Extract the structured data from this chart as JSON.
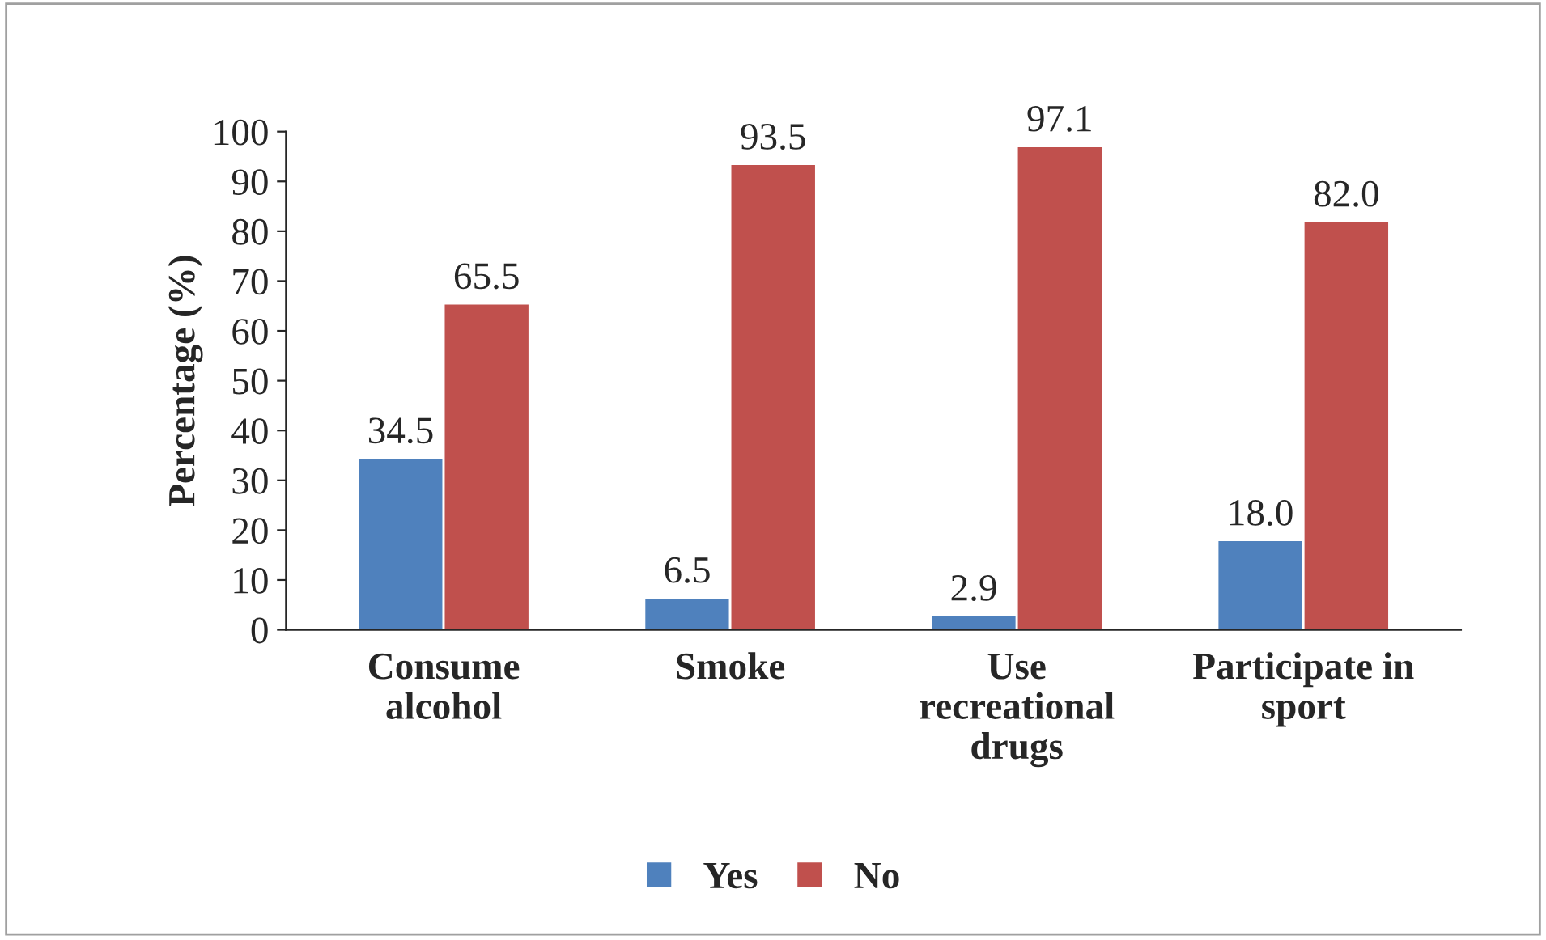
{
  "chart_data": {
    "type": "bar",
    "categories": [
      "Consume\nalcohol",
      "Smoke",
      "Use\nrecreational\ndrugs",
      "Participate in\nsport"
    ],
    "ylabel": "Percentage (%)",
    "series": [
      {
        "name": "Yes",
        "color": "#4f81bd",
        "values": [
          34.5,
          6.5,
          2.9,
          18.0
        ],
        "value_labels": [
          "34.5",
          "6.5",
          "2.9",
          "18.0"
        ]
      },
      {
        "name": "No",
        "color": "#c0504d",
        "values": [
          65.5,
          93.5,
          97.1,
          82.0
        ],
        "value_labels": [
          "65.5",
          "93.5",
          "97.1",
          "82.0"
        ]
      }
    ],
    "ylim": [
      0,
      100
    ],
    "yticks": [
      0,
      10,
      20,
      30,
      40,
      50,
      60,
      70,
      80,
      90,
      100
    ],
    "grid": false,
    "legend": "bottom"
  }
}
